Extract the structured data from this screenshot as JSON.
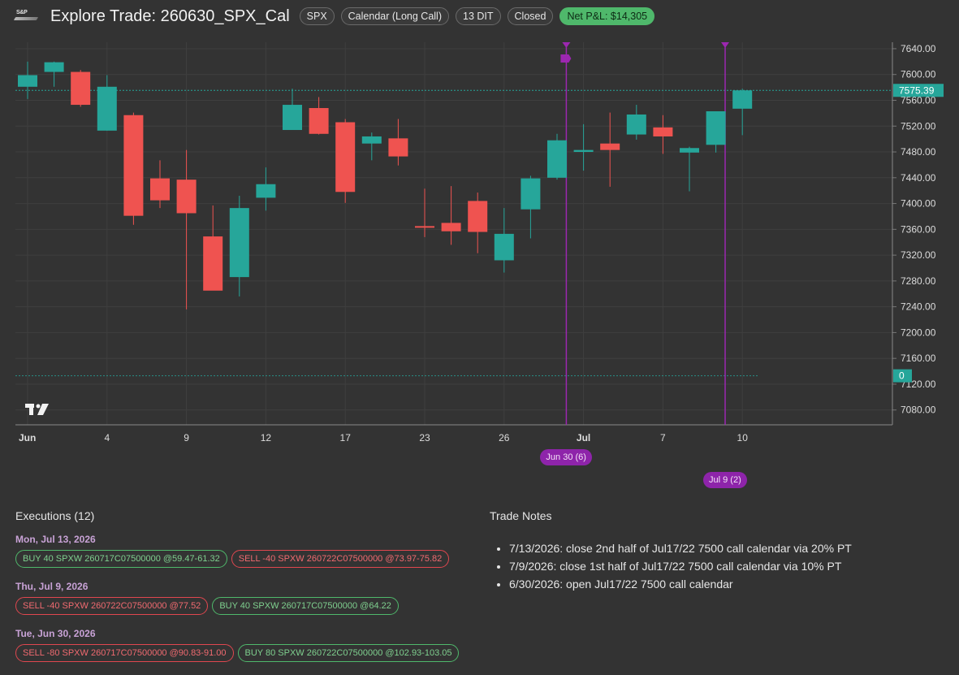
{
  "header": {
    "logo_text": "S&P",
    "title": "Explore Trade: 260630_SPX_Cal",
    "chips": [
      "SPX",
      "Calendar (Long Call)",
      "13 DIT",
      "Closed"
    ],
    "pnl_label": "Net P&L: $14,305"
  },
  "colors": {
    "up": "#26a69a",
    "down": "#ef5350",
    "event": "#9c27b0",
    "grid": "#3f3f3f",
    "bg": "#333333"
  },
  "chart_data": {
    "type": "candlestick",
    "x_tick_labels": [
      {
        "i": 0,
        "label": "Jun"
      },
      {
        "i": 3,
        "label": "4"
      },
      {
        "i": 6,
        "label": "9"
      },
      {
        "i": 9,
        "label": "12"
      },
      {
        "i": 12,
        "label": "17"
      },
      {
        "i": 15,
        "label": "23"
      },
      {
        "i": 18,
        "label": "26"
      },
      {
        "i": 21,
        "label": "Jul"
      },
      {
        "i": 24,
        "label": "7"
      },
      {
        "i": 27,
        "label": "10"
      }
    ],
    "y_ticks": [
      7080,
      7120,
      7160,
      7200,
      7240,
      7280,
      7320,
      7360,
      7400,
      7440,
      7480,
      7520,
      7560,
      7600,
      7640
    ],
    "ylim": [
      7057,
      7650
    ],
    "candles": [
      {
        "o": 7581,
        "h": 7620,
        "l": 7562,
        "c": 7599
      },
      {
        "o": 7604,
        "h": 7620,
        "l": 7581,
        "c": 7619
      },
      {
        "o": 7604,
        "h": 7607,
        "l": 7550,
        "c": 7553
      },
      {
        "o": 7513,
        "h": 7599,
        "l": 7513,
        "c": 7581
      },
      {
        "o": 7537,
        "h": 7541,
        "l": 7367,
        "c": 7381
      },
      {
        "o": 7439,
        "h": 7467,
        "l": 7393,
        "c": 7405
      },
      {
        "o": 7437,
        "h": 7483,
        "l": 7236,
        "c": 7385
      },
      {
        "o": 7349,
        "h": 7397,
        "l": 7266,
        "c": 7265
      },
      {
        "o": 7286,
        "h": 7412,
        "l": 7256,
        "c": 7393
      },
      {
        "o": 7409,
        "h": 7456,
        "l": 7389,
        "c": 7430
      },
      {
        "o": 7514,
        "h": 7578,
        "l": 7514,
        "c": 7553
      },
      {
        "o": 7548,
        "h": 7565,
        "l": 7507,
        "c": 7508
      },
      {
        "o": 7526,
        "h": 7531,
        "l": 7401,
        "c": 7418
      },
      {
        "o": 7493,
        "h": 7510,
        "l": 7467,
        "c": 7504
      },
      {
        "o": 7501,
        "h": 7531,
        "l": 7459,
        "c": 7473
      },
      {
        "o": 7365,
        "h": 7423,
        "l": 7348,
        "c": 7364
      },
      {
        "o": 7370,
        "h": 7427,
        "l": 7336,
        "c": 7357
      },
      {
        "o": 7404,
        "h": 7417,
        "l": 7323,
        "c": 7356
      },
      {
        "o": 7312,
        "h": 7393,
        "l": 7293,
        "c": 7353
      },
      {
        "o": 7391,
        "h": 7443,
        "l": 7346,
        "c": 7439
      },
      {
        "o": 7440,
        "h": 7508,
        "l": 7437,
        "c": 7498
      },
      {
        "o": 7480,
        "h": 7523,
        "l": 7451,
        "c": 7483
      },
      {
        "o": 7493,
        "h": 7541,
        "l": 7426,
        "c": 7483
      },
      {
        "o": 7507,
        "h": 7553,
        "l": 7499,
        "c": 7538
      },
      {
        "o": 7518,
        "h": 7537,
        "l": 7477,
        "c": 7504
      },
      {
        "o": 7479,
        "h": 7488,
        "l": 7419,
        "c": 7486
      },
      {
        "o": 7491,
        "h": 7543,
        "l": 7479,
        "c": 7543
      },
      {
        "o": 7547,
        "h": 7578,
        "l": 7506,
        "c": 7575.39
      }
    ],
    "last_price": 7575.39,
    "last_price_label": "7575.39",
    "zero_line": {
      "value": 7133,
      "label": "0"
    },
    "events": [
      {
        "i": 20.35,
        "label": "Jun 30 (6)",
        "row": 0
      },
      {
        "i": 26.35,
        "label": "Jul 9 (2)",
        "row": 1
      }
    ],
    "grid": true
  },
  "executions": {
    "title": "Executions (12)",
    "groups": [
      {
        "date": "Mon, Jul 13, 2026",
        "legs": [
          {
            "side": "buy",
            "text": "BUY 40 SPXW 260717C07500000 @59.47-61.32"
          },
          {
            "side": "sell",
            "text": "SELL -40 SPXW 260722C07500000 @73.97-75.82"
          }
        ]
      },
      {
        "date": "Thu, Jul 9, 2026",
        "legs": [
          {
            "side": "sell",
            "text": "SELL -40 SPXW 260722C07500000 @77.52"
          },
          {
            "side": "buy",
            "text": "BUY 40 SPXW 260717C07500000 @64.22"
          }
        ]
      },
      {
        "date": "Tue, Jun 30, 2026",
        "legs": [
          {
            "side": "sell",
            "text": "SELL -80 SPXW 260717C07500000 @90.83-91.00"
          },
          {
            "side": "buy",
            "text": "BUY 80 SPXW 260722C07500000 @102.93-103.05"
          }
        ]
      }
    ]
  },
  "notes": {
    "title": "Trade Notes",
    "items": [
      "7/13/2026: close 2nd half of Jul17/22 7500 call calendar via 20% PT",
      "7/9/2026: close 1st half of Jul17/22 7500 call calendar via 10% PT",
      "6/30/2026: open Jul17/22 7500 call calendar"
    ]
  }
}
